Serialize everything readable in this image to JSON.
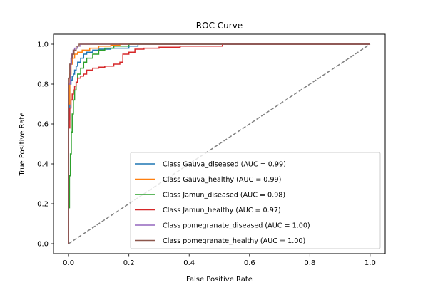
{
  "chart_data": {
    "type": "line",
    "title": "ROC Curve",
    "xlabel": "False Positive Rate",
    "ylabel": "True Positive Rate",
    "xlim": [
      -0.05,
      1.05
    ],
    "ylim": [
      -0.05,
      1.05
    ],
    "xticks": [
      0.0,
      0.2,
      0.4,
      0.6,
      0.8,
      1.0
    ],
    "yticks": [
      0.0,
      0.2,
      0.4,
      0.6,
      0.8,
      1.0
    ],
    "xtick_labels": [
      "0.0",
      "0.2",
      "0.4",
      "0.6",
      "0.8",
      "1.0"
    ],
    "ytick_labels": [
      "0.0",
      "0.2",
      "0.4",
      "0.6",
      "0.8",
      "1.0"
    ],
    "grid": false,
    "legend_position": "lower-right",
    "reference_line": {
      "style": "dashed",
      "color": "#808080",
      "x": [
        0,
        1
      ],
      "y": [
        0,
        1
      ]
    },
    "series": [
      {
        "name": "Class Gauva_diseased (AUC = 0.99)",
        "color": "#1f77b4",
        "x": [
          0,
          0,
          0.004,
          0.004,
          0.008,
          0.008,
          0.012,
          0.012,
          0.016,
          0.016,
          0.02,
          0.02,
          0.025,
          0.025,
          0.03,
          0.03,
          0.04,
          0.04,
          0.05,
          0.05,
          0.06,
          0.06,
          0.08,
          0.08,
          0.1,
          0.1,
          0.14,
          0.14,
          0.2,
          0.2,
          0.23,
          0.23,
          1.0
        ],
        "y": [
          0,
          0.62,
          0.62,
          0.8,
          0.8,
          0.82,
          0.82,
          0.84,
          0.84,
          0.85,
          0.85,
          0.87,
          0.87,
          0.89,
          0.89,
          0.91,
          0.91,
          0.93,
          0.93,
          0.95,
          0.95,
          0.96,
          0.96,
          0.97,
          0.97,
          0.975,
          0.975,
          0.98,
          0.98,
          0.99,
          0.99,
          1.0,
          1.0
        ]
      },
      {
        "name": "Class Gauva_healthy (AUC = 0.99)",
        "color": "#ff7f0e",
        "x": [
          0,
          0,
          0.004,
          0.004,
          0.008,
          0.008,
          0.012,
          0.012,
          0.02,
          0.02,
          0.03,
          0.03,
          0.045,
          0.045,
          0.07,
          0.07,
          0.1,
          0.1,
          0.14,
          0.14,
          0.17,
          0.17,
          1.0
        ],
        "y": [
          0,
          0.7,
          0.7,
          0.85,
          0.85,
          0.9,
          0.9,
          0.93,
          0.93,
          0.95,
          0.95,
          0.96,
          0.96,
          0.97,
          0.97,
          0.98,
          0.98,
          0.99,
          0.99,
          0.995,
          0.995,
          1.0,
          1.0
        ]
      },
      {
        "name": "Class Jamun_diseased (AUC = 0.98)",
        "color": "#2ca02c",
        "x": [
          0,
          0,
          0.003,
          0.003,
          0.006,
          0.006,
          0.009,
          0.009,
          0.012,
          0.012,
          0.016,
          0.016,
          0.02,
          0.02,
          0.025,
          0.025,
          0.03,
          0.03,
          0.04,
          0.04,
          0.05,
          0.05,
          0.06,
          0.06,
          0.08,
          0.08,
          0.1,
          0.1,
          0.12,
          0.12,
          0.15,
          0.15,
          0.2,
          0.2,
          1.0
        ],
        "y": [
          0,
          0.18,
          0.18,
          0.34,
          0.34,
          0.45,
          0.45,
          0.56,
          0.56,
          0.65,
          0.65,
          0.72,
          0.72,
          0.77,
          0.77,
          0.81,
          0.81,
          0.85,
          0.85,
          0.88,
          0.88,
          0.91,
          0.91,
          0.93,
          0.93,
          0.95,
          0.95,
          0.97,
          0.97,
          0.98,
          0.98,
          0.99,
          0.99,
          1.0,
          1.0
        ]
      },
      {
        "name": "Class Jamun_healthy (AUC = 0.97)",
        "color": "#d62728",
        "x": [
          0,
          0,
          0.004,
          0.004,
          0.008,
          0.008,
          0.012,
          0.012,
          0.016,
          0.016,
          0.02,
          0.02,
          0.025,
          0.025,
          0.03,
          0.03,
          0.04,
          0.04,
          0.05,
          0.05,
          0.06,
          0.06,
          0.08,
          0.08,
          0.1,
          0.1,
          0.12,
          0.12,
          0.15,
          0.15,
          0.17,
          0.17,
          0.18,
          0.18,
          0.2,
          0.2,
          0.22,
          0.22,
          0.25,
          0.25,
          0.3,
          0.3,
          0.37,
          0.37,
          0.51,
          0.51,
          1.0
        ],
        "y": [
          0,
          0.58,
          0.58,
          0.68,
          0.68,
          0.72,
          0.72,
          0.75,
          0.75,
          0.77,
          0.77,
          0.79,
          0.79,
          0.81,
          0.81,
          0.83,
          0.83,
          0.84,
          0.84,
          0.85,
          0.85,
          0.87,
          0.87,
          0.88,
          0.88,
          0.885,
          0.885,
          0.89,
          0.89,
          0.9,
          0.9,
          0.91,
          0.91,
          0.95,
          0.95,
          0.96,
          0.96,
          0.975,
          0.975,
          0.98,
          0.98,
          0.985,
          0.985,
          0.99,
          0.99,
          1.0,
          1.0
        ]
      },
      {
        "name": "Class pomegranate_diseased (AUC = 1.00)",
        "color": "#9467bd",
        "x": [
          0,
          0,
          0.005,
          0.005,
          0.01,
          0.01,
          0.015,
          0.015,
          0.02,
          0.02,
          0.03,
          0.03,
          0.04,
          0.04,
          1.0
        ],
        "y": [
          0,
          0.8,
          0.8,
          0.9,
          0.9,
          0.95,
          0.95,
          0.97,
          0.97,
          0.98,
          0.98,
          0.99,
          0.99,
          1.0,
          1.0
        ]
      },
      {
        "name": "Class pomegranate_healthy (AUC = 1.00)",
        "color": "#8c564b",
        "x": [
          0,
          0,
          0.004,
          0.004,
          0.008,
          0.008,
          0.012,
          0.012,
          0.018,
          0.018,
          0.025,
          0.025,
          0.035,
          0.035,
          1.0
        ],
        "y": [
          0,
          0.83,
          0.83,
          0.9,
          0.9,
          0.93,
          0.93,
          0.95,
          0.95,
          0.97,
          0.97,
          0.99,
          0.99,
          1.0,
          1.0
        ]
      }
    ]
  }
}
